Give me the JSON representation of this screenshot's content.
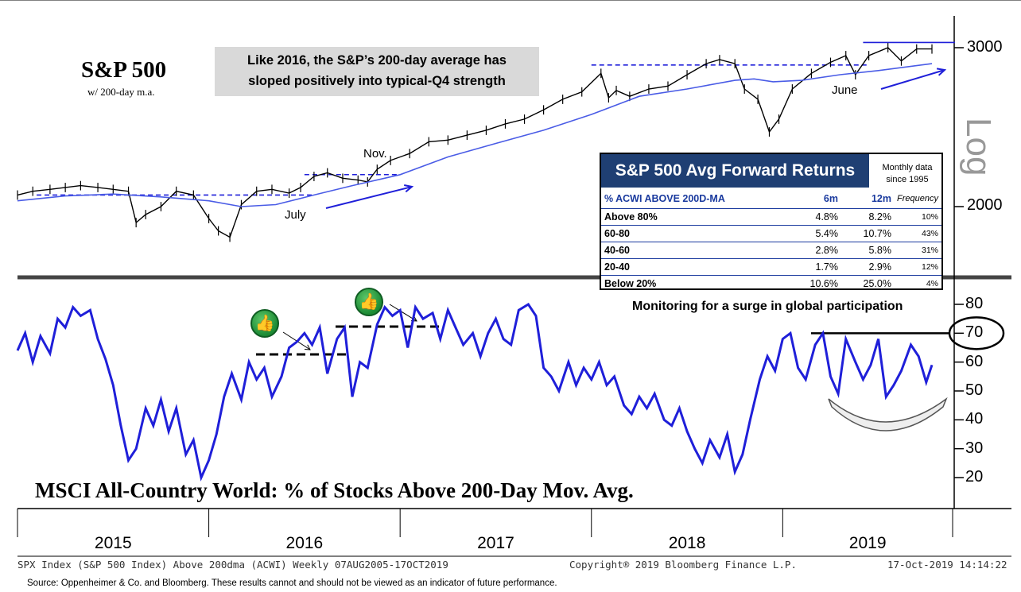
{
  "chart_data": [
    {
      "type": "line",
      "title": "S&P 500",
      "subtitle": "w/ 200-day m.a.",
      "callout": [
        "Like 2016, the S&P’s 200-day average has",
        "sloped positively into typical-Q4 strength"
      ],
      "scale": "log",
      "ylabel": "Log",
      "yticks": [
        3000,
        2000
      ],
      "ylim": [
        1650,
        3150
      ],
      "annotations": [
        "Nov.",
        "July",
        "June"
      ],
      "series": [
        {
          "name": "",
          "color": "#000000",
          "x": [
            2015.0,
            2015.08,
            2015.17,
            2015.25,
            2015.33,
            2015.42,
            2015.5,
            2015.58,
            2015.62,
            2015.67,
            2015.75,
            2015.83,
            2015.92,
            2016.0,
            2016.05,
            2016.11,
            2016.17,
            2016.25,
            2016.33,
            2016.42,
            2016.48,
            2016.55,
            2016.62,
            2016.7,
            2016.78,
            2016.83,
            2016.88,
            2016.95,
            2017.05,
            2017.15,
            2017.25,
            2017.35,
            2017.45,
            2017.55,
            2017.65,
            2017.75,
            2017.85,
            2017.95,
            2018.05,
            2018.09,
            2018.13,
            2018.2,
            2018.3,
            2018.4,
            2018.5,
            2018.6,
            2018.67,
            2018.75,
            2018.8,
            2018.87,
            2018.93,
            2018.98,
            2019.05,
            2019.15,
            2019.25,
            2019.33,
            2019.38,
            2019.45,
            2019.55,
            2019.62,
            2019.7,
            2019.78
          ],
          "values": [
            2060,
            2080,
            2090,
            2100,
            2110,
            2100,
            2090,
            2080,
            1920,
            1960,
            2000,
            2080,
            2060,
            1940,
            1880,
            1850,
            2010,
            2080,
            2090,
            2070,
            2100,
            2160,
            2180,
            2150,
            2140,
            2130,
            2200,
            2250,
            2290,
            2360,
            2370,
            2400,
            2430,
            2470,
            2500,
            2560,
            2630,
            2680,
            2810,
            2640,
            2690,
            2650,
            2700,
            2720,
            2800,
            2880,
            2910,
            2880,
            2700,
            2630,
            2420,
            2500,
            2700,
            2810,
            2890,
            2940,
            2800,
            2940,
            3000,
            2900,
            2990,
            2990
          ]
        },
        {
          "name": "",
          "color": "#4a5ce6",
          "x": [
            2015.0,
            2015.25,
            2015.5,
            2015.75,
            2016.0,
            2016.17,
            2016.35,
            2016.55,
            2016.75,
            2017.0,
            2017.25,
            2017.5,
            2017.75,
            2018.0,
            2018.25,
            2018.5,
            2018.75,
            2018.85,
            2018.95,
            2019.1,
            2019.3,
            2019.5,
            2019.78
          ],
          "values": [
            2030,
            2055,
            2065,
            2050,
            2030,
            2000,
            2010,
            2060,
            2110,
            2170,
            2270,
            2350,
            2430,
            2530,
            2650,
            2700,
            2760,
            2770,
            2750,
            2760,
            2800,
            2830,
            2880
          ]
        }
      ],
      "levels": [
        2060,
        2170,
        2870,
        3040
      ]
    },
    {
      "type": "line",
      "title": "MSCI All-Country World: % of Stocks Above 200-Day Mov. Avg.",
      "annotation": "Monitoring for a surge in global participation",
      "ylim": [
        15,
        85
      ],
      "yticks": [
        20,
        30,
        40,
        50,
        60,
        70,
        80
      ],
      "xlabels": [
        "2015",
        "2016",
        "2017",
        "2018",
        "2019"
      ],
      "series": [
        {
          "name": "",
          "color": "#1f1fd9",
          "x": [
            2015.0,
            2015.04,
            2015.08,
            2015.12,
            2015.17,
            2015.21,
            2015.25,
            2015.29,
            2015.33,
            2015.38,
            2015.42,
            2015.46,
            2015.5,
            2015.54,
            2015.58,
            2015.62,
            2015.67,
            2015.71,
            2015.75,
            2015.79,
            2015.83,
            2015.88,
            2015.92,
            2015.96,
            2016.0,
            2016.04,
            2016.08,
            2016.12,
            2016.17,
            2016.21,
            2016.25,
            2016.29,
            2016.33,
            2016.38,
            2016.42,
            2016.46,
            2016.5,
            2016.54,
            2016.58,
            2016.62,
            2016.67,
            2016.71,
            2016.75,
            2016.79,
            2016.83,
            2016.88,
            2016.92,
            2016.96,
            2017.0,
            2017.04,
            2017.08,
            2017.12,
            2017.17,
            2017.21,
            2017.25,
            2017.29,
            2017.33,
            2017.38,
            2017.42,
            2017.46,
            2017.5,
            2017.54,
            2017.58,
            2017.62,
            2017.67,
            2017.71,
            2017.75,
            2017.79,
            2017.83,
            2017.88,
            2017.92,
            2017.96,
            2018.0,
            2018.04,
            2018.08,
            2018.12,
            2018.17,
            2018.21,
            2018.25,
            2018.29,
            2018.33,
            2018.38,
            2018.42,
            2018.46,
            2018.5,
            2018.54,
            2018.58,
            2018.62,
            2018.67,
            2018.71,
            2018.75,
            2018.79,
            2018.83,
            2018.88,
            2018.92,
            2018.96,
            2019.0,
            2019.04,
            2019.08,
            2019.12,
            2019.17,
            2019.21,
            2019.25,
            2019.29,
            2019.33,
            2019.38,
            2019.42,
            2019.46,
            2019.5,
            2019.54,
            2019.58,
            2019.62,
            2019.67,
            2019.71,
            2019.75,
            2019.78
          ],
          "values": [
            64,
            70,
            60,
            69,
            63,
            75,
            72,
            79,
            76,
            78,
            68,
            61,
            52,
            38,
            26,
            30,
            44,
            38,
            47,
            36,
            44,
            28,
            33,
            20,
            26,
            35,
            48,
            56,
            47,
            60,
            54,
            58,
            48,
            55,
            65,
            67,
            70,
            66,
            72,
            56,
            68,
            72,
            48,
            60,
            58,
            73,
            79,
            76,
            78,
            65,
            79,
            75,
            77,
            68,
            78,
            72,
            66,
            70,
            62,
            70,
            75,
            68,
            66,
            78,
            80,
            76,
            58,
            55,
            50,
            60,
            52,
            58,
            54,
            60,
            52,
            55,
            45,
            42,
            48,
            44,
            49,
            40,
            38,
            44,
            36,
            30,
            25,
            33,
            27,
            35,
            22,
            28,
            40,
            54,
            62,
            57,
            68,
            70,
            58,
            54,
            66,
            70,
            55,
            49,
            68,
            60,
            54,
            59,
            68,
            48,
            52,
            57,
            66,
            62,
            53,
            59
          ],
          "comment": "approximate weekly-ish readings"
        }
      ]
    }
  ],
  "table": {
    "header": "S&P 500 Avg Forward Returns",
    "note": [
      "Monthly data",
      "since 1995"
    ],
    "columns": [
      "% ACWI ABOVE 200D-MA",
      "6m",
      "12m",
      "Frequency"
    ],
    "rows": [
      [
        "Above 80%",
        "4.8%",
        "8.2%",
        "10%"
      ],
      [
        "60-80",
        "5.4%",
        "10.7%",
        "43%"
      ],
      [
        "40-60",
        "2.8%",
        "5.8%",
        "31%"
      ],
      [
        "20-40",
        "1.7%",
        "2.9%",
        "12%"
      ],
      [
        "Below 20%",
        "10.6%",
        "25.0%",
        "4%"
      ]
    ]
  },
  "footer": {
    "left": "SPX Index (S&P 500 Index) Above 200dma (ACWI) Weekly 07AUG2005-17OCT2019",
    "center": "Copyright® 2019 Bloomberg Finance L.P.",
    "right": "17-Oct-2019 14:14:22",
    "source": "Source:  Oppenheimer & Co. and Bloomberg.  These results cannot and should not be viewed as an indicator of future performance."
  },
  "colors": {
    "price": "#000000",
    "ma": "#4a5ce6",
    "breadth": "#1f1fd9",
    "table_header": "#1f3f73",
    "callout_bg": "#d9d9d9"
  }
}
